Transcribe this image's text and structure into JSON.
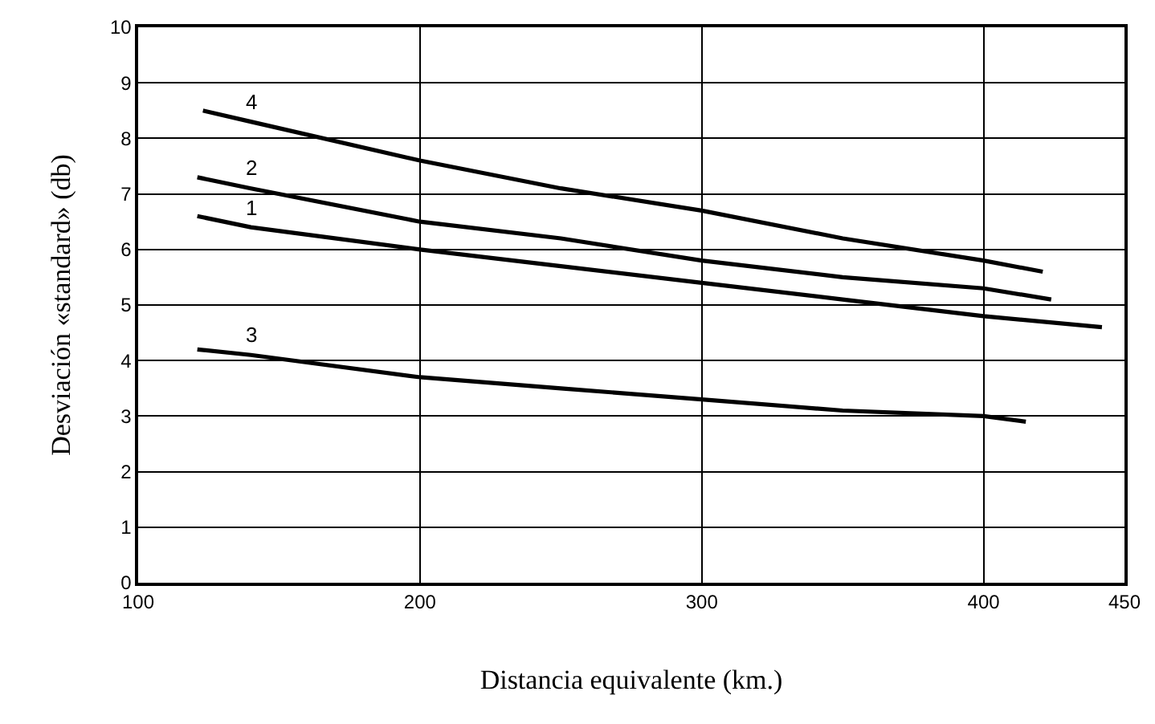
{
  "chart_data": {
    "type": "line",
    "xlabel": "Distancia equivalente (km.)",
    "ylabel": "Desviación «standard» (db)",
    "xlim": [
      100,
      450
    ],
    "xticks": [
      100,
      200,
      300,
      400,
      450
    ],
    "ylim": [
      0,
      10
    ],
    "yticks": [
      0,
      1,
      2,
      3,
      4,
      5,
      6,
      7,
      8,
      9,
      10
    ],
    "grid": true,
    "legend": false,
    "marker": "none",
    "line_style": "solid",
    "series": [
      {
        "name": "4",
        "color": "#000000",
        "x": [
          123,
          140,
          200,
          250,
          300,
          350,
          400,
          421
        ],
        "values": [
          8.5,
          8.3,
          7.6,
          7.1,
          6.7,
          6.2,
          5.8,
          5.6
        ]
      },
      {
        "name": "2",
        "color": "#000000",
        "x": [
          121,
          140,
          200,
          250,
          300,
          350,
          400,
          424
        ],
        "values": [
          7.3,
          7.1,
          6.5,
          6.2,
          5.8,
          5.5,
          5.3,
          5.1
        ]
      },
      {
        "name": "1",
        "color": "#000000",
        "x": [
          121,
          140,
          200,
          250,
          300,
          350,
          400,
          442
        ],
        "values": [
          6.6,
          6.4,
          6.0,
          5.7,
          5.4,
          5.1,
          4.8,
          4.6
        ]
      },
      {
        "name": "3",
        "color": "#000000",
        "x": [
          121,
          140,
          200,
          250,
          300,
          350,
          400,
          415
        ],
        "values": [
          4.2,
          4.1,
          3.7,
          3.5,
          3.3,
          3.1,
          3.0,
          2.9
        ]
      }
    ]
  }
}
